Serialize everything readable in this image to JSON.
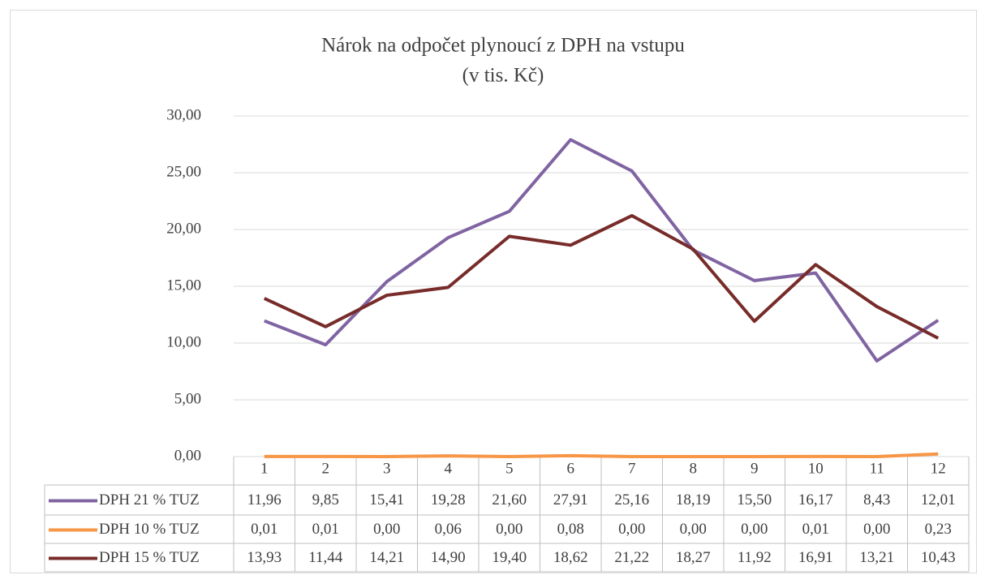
{
  "chart_data": {
    "type": "line",
    "title": "Nárok na odpočet plynoucí z DPH na vstupu",
    "subtitle": "(v tis. Kč)",
    "categories": [
      "1",
      "2",
      "3",
      "4",
      "5",
      "6",
      "7",
      "8",
      "9",
      "10",
      "11",
      "12"
    ],
    "series": [
      {
        "name": "DPH 21 % TUZ",
        "color": "#8064a2",
        "values": [
          11.96,
          9.85,
          15.41,
          19.28,
          21.6,
          27.91,
          25.16,
          18.19,
          15.5,
          16.17,
          8.43,
          12.01
        ],
        "value_labels": [
          "11,96",
          "9,85",
          "15,41",
          "19,28",
          "21,60",
          "27,91",
          "25,16",
          "18,19",
          "15,50",
          "16,17",
          "8,43",
          "12,01"
        ]
      },
      {
        "name": "DPH 10 % TUZ",
        "color": "#f79646",
        "values": [
          0.01,
          0.01,
          0.0,
          0.06,
          0.0,
          0.08,
          0.0,
          0.0,
          0.0,
          0.01,
          0.0,
          0.23
        ],
        "value_labels": [
          "0,01",
          "0,01",
          "0,00",
          "0,06",
          "0,00",
          "0,08",
          "0,00",
          "0,00",
          "0,00",
          "0,01",
          "0,00",
          "0,23"
        ]
      },
      {
        "name": "DPH 15 % TUZ",
        "color": "#772c2a",
        "values": [
          13.93,
          11.44,
          14.21,
          14.9,
          19.4,
          18.62,
          21.22,
          18.27,
          11.92,
          16.91,
          13.21,
          10.43
        ],
        "value_labels": [
          "13,93",
          "11,44",
          "14,21",
          "14,90",
          "19,40",
          "18,62",
          "21,22",
          "18,27",
          "11,92",
          "16,91",
          "13,21",
          "10,43"
        ]
      }
    ],
    "ylim": [
      0,
      30
    ],
    "yticks": [
      {
        "value": 0,
        "label": "0,00"
      },
      {
        "value": 5,
        "label": "5,00"
      },
      {
        "value": 10,
        "label": "10,00"
      },
      {
        "value": 15,
        "label": "15,00"
      },
      {
        "value": 20,
        "label": "20,00"
      },
      {
        "value": 25,
        "label": "25,00"
      },
      {
        "value": 30,
        "label": "30,00"
      }
    ],
    "grid": true
  }
}
